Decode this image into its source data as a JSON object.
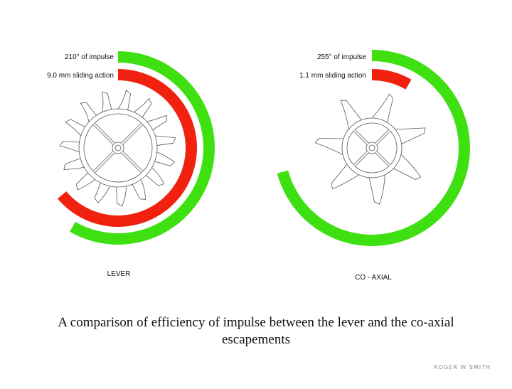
{
  "lever": {
    "impulse_label": "210° of impulse",
    "sliding_label": "9.0 mm sliding action",
    "name": "LEVER"
  },
  "coaxial": {
    "impulse_label": "255° of impulse",
    "sliding_label": "1.1 mm sliding action",
    "name": "CO - AXIAL"
  },
  "caption": "A comparison of efficiency of impulse between the lever and the co-axial escapements",
  "credit": "ROGER W SMITH"
}
